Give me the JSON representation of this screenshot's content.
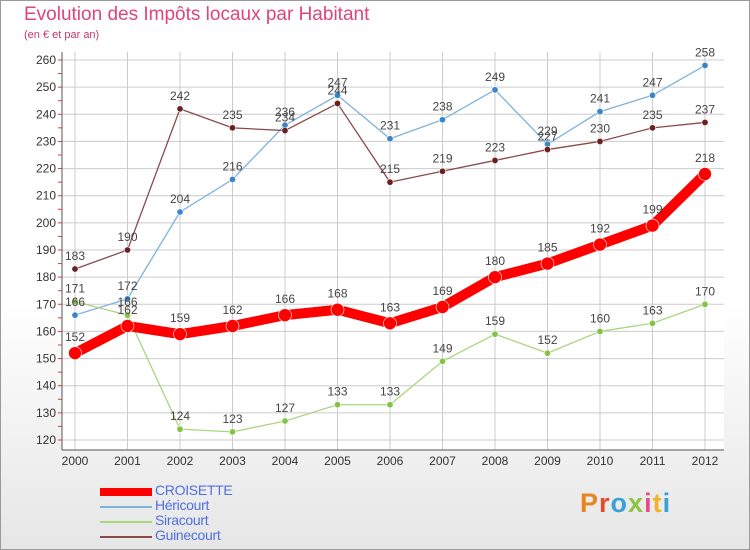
{
  "header": {
    "title": "Evolution des Impôts locaux par Habitant",
    "subtitle": "(en € et par an)"
  },
  "logo": {
    "text": "Proxiti",
    "letter_colors": [
      "#e8851f",
      "#e64b2c",
      "#3aa0d8",
      "#8cc63f",
      "#e84a8a",
      "#f0b429",
      "#3aa0d8"
    ]
  },
  "colors": {
    "title": "#e0447a",
    "legend_text": "#4f6fe0",
    "axis_labels": "#333333",
    "grid": "#cccccc"
  },
  "chart_data": {
    "type": "line",
    "title": "Evolution des Impôts locaux par Habitant",
    "subtitle": "(en € et par an)",
    "categories": [
      "2000",
      "2001",
      "2002",
      "2003",
      "2004",
      "2005",
      "2006",
      "2007",
      "2008",
      "2009",
      "2010",
      "2011",
      "2012"
    ],
    "ylim": [
      120,
      260
    ],
    "yticks": [
      120,
      130,
      140,
      150,
      160,
      170,
      180,
      190,
      200,
      210,
      220,
      230,
      240,
      250,
      260
    ],
    "grid": true,
    "legend_position": "bottom-left",
    "series": [
      {
        "name": "CROISETTE",
        "color": "#ff0000",
        "marker": "#ff0000",
        "width": 10,
        "values": [
          152,
          162,
          159,
          162,
          166,
          168,
          163,
          169,
          180,
          185,
          192,
          199,
          218
        ]
      },
      {
        "name": "Héricourt",
        "color": "#7fb2dd",
        "marker": "#3a86c8",
        "width": 1.3,
        "values": [
          166,
          172,
          204,
          216,
          236,
          247,
          231,
          238,
          249,
          229,
          241,
          247,
          258
        ]
      },
      {
        "name": "Siracourt",
        "color": "#a9d67f",
        "marker": "#84c444",
        "width": 1.3,
        "values": [
          171,
          166,
          124,
          123,
          127,
          133,
          133,
          149,
          159,
          152,
          160,
          163,
          170
        ]
      },
      {
        "name": "Guinecourt",
        "color": "#8a4a4a",
        "marker": "#6b1f1f",
        "width": 1.3,
        "values": [
          183,
          190,
          242,
          235,
          234,
          244,
          215,
          219,
          223,
          227,
          230,
          235,
          237
        ]
      }
    ]
  }
}
